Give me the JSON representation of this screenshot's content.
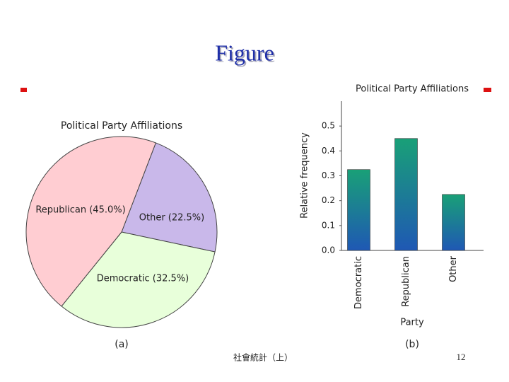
{
  "slide": {
    "title": "Figure",
    "footer": "社會統計（上）",
    "page_number": "12"
  },
  "chart_data": [
    {
      "type": "pie",
      "title": "Political Party Affiliations",
      "caption": "(a)",
      "values": [
        22.5,
        32.5,
        45.0
      ],
      "value_labels": [
        "Other (22.5%)",
        "Democratic (32.5%)",
        "Republican (45.0%)"
      ],
      "colors": [
        "#c9b8ea",
        "#e8ffda",
        "#ffcdd2"
      ]
    },
    {
      "type": "bar",
      "title": "Political Party Affiliations",
      "caption": "(b)",
      "categories": [
        "Democratic",
        "Republican",
        "Other"
      ],
      "values": [
        0.325,
        0.45,
        0.225
      ],
      "ylabel": "Relative frequency",
      "xlabel": "Party",
      "ylim": [
        0,
        0.6
      ],
      "yticks": [
        {
          "value": 0,
          "label": "0.0"
        },
        0.1,
        0.2,
        0.3,
        0.4,
        0.5
      ],
      "gradient": [
        "#19a077",
        "#1f58b4"
      ]
    }
  ]
}
